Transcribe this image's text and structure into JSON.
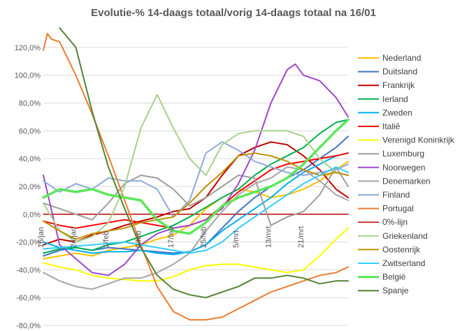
{
  "chart_data": {
    "type": "line",
    "title": "Evolutie-% 14-daags totaal/vorig 14-daags totaal na 16/01",
    "ylim": [
      -80,
      130
    ],
    "yticks": [
      -80,
      -60,
      -40,
      -20,
      0,
      20,
      40,
      60,
      80,
      100,
      120
    ],
    "ytick_labels": [
      "-80,0%",
      "-60,0%",
      "-40,0%",
      "-20,0%",
      "0,0%",
      "20,0%",
      "40,0%",
      "60,0%",
      "80,0%",
      "100,0%",
      "120,0%"
    ],
    "x_range": [
      0,
      75
    ],
    "x_tick_days": [
      0,
      8,
      16,
      24,
      32,
      40,
      48,
      56,
      64
    ],
    "x_tick_labels": [
      "16/jan",
      "24/jan",
      "1/feb",
      "9/feb",
      "17/feb",
      "25/feb",
      "5/mrt",
      "13/mrt",
      "21/mrt"
    ],
    "legend_position": "right",
    "grid": "horizontal",
    "series": [
      {
        "name": "Nederland",
        "color": "#ffc000",
        "width": 2,
        "x": [
          0,
          4,
          8,
          12,
          16,
          20,
          24,
          28,
          32,
          36,
          40,
          44,
          48,
          52,
          56,
          60,
          64,
          68,
          72,
          75
        ],
        "y": [
          -32,
          -30,
          -28,
          -30,
          -26,
          -24,
          -22,
          -18,
          -15,
          -8,
          4,
          12,
          18,
          16,
          12,
          14,
          18,
          24,
          32,
          38
        ]
      },
      {
        "name": "Duitsland",
        "color": "#4472c4",
        "width": 2,
        "x": [
          0,
          4,
          8,
          12,
          16,
          20,
          24,
          28,
          32,
          36,
          40,
          44,
          48,
          52,
          56,
          60,
          64,
          68,
          72,
          75
        ],
        "y": [
          -30,
          -26,
          -24,
          -26,
          -24,
          -25,
          -26,
          -27,
          -28,
          -27,
          -22,
          -10,
          2,
          12,
          20,
          26,
          32,
          40,
          48,
          56
        ]
      },
      {
        "name": "Frankrijk",
        "color": "#c00000",
        "width": 2,
        "x": [
          0,
          4,
          8,
          12,
          16,
          20,
          24,
          28,
          32,
          36,
          40,
          44,
          48,
          52,
          56,
          60,
          64,
          68,
          72,
          75
        ],
        "y": [
          -22,
          -18,
          -20,
          -15,
          -12,
          -8,
          -5,
          -2,
          2,
          4,
          12,
          28,
          42,
          48,
          52,
          50,
          42,
          32,
          18,
          12
        ]
      },
      {
        "name": "Ierland",
        "color": "#00b050",
        "width": 2,
        "x": [
          0,
          4,
          8,
          12,
          16,
          20,
          24,
          28,
          32,
          36,
          40,
          44,
          48,
          52,
          56,
          60,
          64,
          68,
          72,
          75
        ],
        "y": [
          -28,
          -25,
          -24,
          -26,
          -22,
          -20,
          -16,
          -12,
          -8,
          -2,
          5,
          12,
          18,
          28,
          36,
          42,
          48,
          58,
          66,
          68
        ]
      },
      {
        "name": "Zweden",
        "color": "#00b0f0",
        "width": 2,
        "x": [
          0,
          4,
          8,
          12,
          16,
          20,
          24,
          28,
          32,
          36,
          40,
          44,
          48,
          52,
          56,
          60,
          64,
          68,
          72,
          75
        ],
        "y": [
          -20,
          -24,
          -26,
          -28,
          -27,
          -27,
          -26,
          -28,
          -29,
          -27,
          -22,
          -12,
          -4,
          4,
          12,
          22,
          30,
          36,
          42,
          44
        ]
      },
      {
        "name": "Italiê",
        "color": "#ff0000",
        "width": 2,
        "x": [
          0,
          4,
          8,
          12,
          16,
          20,
          24,
          28,
          32,
          36,
          40,
          44,
          48,
          52,
          56,
          60,
          64,
          68,
          72,
          75
        ],
        "y": [
          -5,
          -8,
          -10,
          -8,
          -6,
          -4,
          -6,
          -8,
          -10,
          -8,
          -4,
          6,
          16,
          24,
          32,
          36,
          38,
          40,
          42,
          44
        ]
      },
      {
        "name": "Verenigd Koninkrijk",
        "color": "#ffff00",
        "width": 2,
        "x": [
          0,
          4,
          8,
          12,
          16,
          20,
          24,
          28,
          32,
          36,
          40,
          44,
          48,
          52,
          56,
          60,
          64,
          68,
          72,
          75
        ],
        "y": [
          -35,
          -38,
          -40,
          -44,
          -46,
          -47,
          -48,
          -48,
          -45,
          -40,
          -37,
          -36,
          -36,
          -38,
          -40,
          -42,
          -40,
          -30,
          -18,
          -10
        ]
      },
      {
        "name": "Luxemburg",
        "color": "#9e9e9e",
        "width": 2,
        "x": [
          0,
          4,
          8,
          12,
          16,
          20,
          24,
          28,
          32,
          36,
          40,
          44,
          48,
          52,
          56,
          60,
          64,
          68,
          72,
          75
        ],
        "y": [
          8,
          4,
          0,
          -4,
          8,
          22,
          28,
          26,
          18,
          6,
          12,
          20,
          28,
          26,
          -8,
          -2,
          2,
          14,
          34,
          20
        ]
      },
      {
        "name": "Noorwegen",
        "color": "#9e48c8",
        "width": 2,
        "x": [
          0,
          4,
          8,
          12,
          16,
          20,
          24,
          28,
          32,
          36,
          40,
          44,
          48,
          52,
          56,
          60,
          62,
          64,
          68,
          72,
          75
        ],
        "y": [
          28,
          -22,
          -32,
          -42,
          -44,
          -36,
          -22,
          -14,
          -10,
          -8,
          -4,
          4,
          22,
          46,
          80,
          104,
          108,
          100,
          96,
          84,
          70
        ]
      },
      {
        "name": "Denemarken",
        "color": "#a6a6a6",
        "width": 2,
        "x": [
          0,
          4,
          8,
          12,
          16,
          20,
          24,
          28,
          32,
          36,
          40,
          44,
          48,
          52,
          56,
          60,
          64,
          68,
          72,
          75
        ],
        "y": [
          -42,
          -48,
          -52,
          -54,
          -50,
          -46,
          -46,
          -42,
          -36,
          -28,
          -12,
          2,
          14,
          22,
          26,
          34,
          32,
          24,
          14,
          10
        ]
      },
      {
        "name": "Finland",
        "color": "#8faadc",
        "width": 2,
        "x": [
          0,
          4,
          8,
          12,
          16,
          20,
          24,
          28,
          32,
          36,
          40,
          44,
          48,
          52,
          56,
          60,
          64,
          68,
          72,
          75
        ],
        "y": [
          24,
          16,
          22,
          18,
          26,
          24,
          24,
          18,
          -2,
          10,
          44,
          52,
          46,
          38,
          34,
          30,
          28,
          30,
          32,
          36
        ]
      },
      {
        "name": "Portugal",
        "color": "#ed7d31",
        "width": 2,
        "x": [
          0,
          1,
          2,
          4,
          8,
          12,
          16,
          20,
          24,
          28,
          32,
          36,
          40,
          44,
          48,
          52,
          56,
          60,
          64,
          68,
          72,
          75
        ],
        "y": [
          118,
          130,
          126,
          124,
          100,
          72,
          42,
          10,
          -22,
          -52,
          -70,
          -76,
          -76,
          -74,
          -68,
          -62,
          -56,
          -52,
          -48,
          -44,
          -42,
          -38
        ]
      },
      {
        "name": "0%-lijn",
        "color": "#c00000",
        "width": 1.5,
        "x": [
          0,
          75
        ],
        "y": [
          0,
          0
        ]
      },
      {
        "name": "Griekenland",
        "color": "#a9d18e",
        "width": 2,
        "x": [
          0,
          4,
          8,
          12,
          16,
          20,
          24,
          28,
          32,
          36,
          40,
          44,
          48,
          52,
          56,
          60,
          64,
          68,
          72,
          75
        ],
        "y": [
          8,
          -12,
          -20,
          -16,
          -6,
          20,
          62,
          86,
          62,
          40,
          28,
          50,
          58,
          60,
          60,
          60,
          56,
          40,
          30,
          28
        ]
      },
      {
        "name": "Oostenrijk",
        "color": "#bf9000",
        "width": 2,
        "x": [
          0,
          4,
          8,
          12,
          16,
          20,
          24,
          28,
          32,
          36,
          40,
          44,
          48,
          52,
          56,
          60,
          64,
          68,
          72,
          75
        ],
        "y": [
          -5,
          -12,
          -18,
          -14,
          -12,
          -10,
          -6,
          -4,
          -2,
          8,
          20,
          30,
          42,
          44,
          42,
          38,
          32,
          28,
          30,
          28
        ]
      },
      {
        "name": "Zwitserland",
        "color": "#33ccff",
        "width": 2,
        "x": [
          0,
          4,
          8,
          12,
          16,
          20,
          24,
          28,
          32,
          36,
          40,
          44,
          48,
          52,
          56,
          60,
          64,
          68,
          72,
          75
        ],
        "y": [
          -25,
          -24,
          -23,
          -22,
          -21,
          -20,
          -22,
          -24,
          -26,
          -28,
          -26,
          -20,
          -10,
          -2,
          6,
          14,
          22,
          28,
          34,
          30
        ]
      },
      {
        "name": "België",
        "color": "#5ce65c",
        "width": 3.5,
        "x": [
          0,
          4,
          8,
          12,
          16,
          20,
          24,
          28,
          32,
          36,
          40,
          44,
          48,
          52,
          56,
          60,
          64,
          68,
          72,
          75
        ],
        "y": [
          12,
          18,
          16,
          18,
          14,
          12,
          10,
          -4,
          -12,
          -14,
          -6,
          6,
          12,
          16,
          20,
          26,
          36,
          48,
          60,
          68
        ]
      },
      {
        "name": "Spanje",
        "color": "#548235",
        "width": 2,
        "x": [
          4,
          8,
          12,
          16,
          20,
          24,
          28,
          32,
          36,
          40,
          44,
          48,
          52,
          56,
          60,
          64,
          68,
          72,
          75
        ],
        "y": [
          134,
          120,
          74,
          34,
          4,
          -24,
          -44,
          -54,
          -58,
          -60,
          -56,
          -52,
          -46,
          -46,
          -44,
          -46,
          -50,
          -48,
          -48
        ]
      }
    ]
  }
}
